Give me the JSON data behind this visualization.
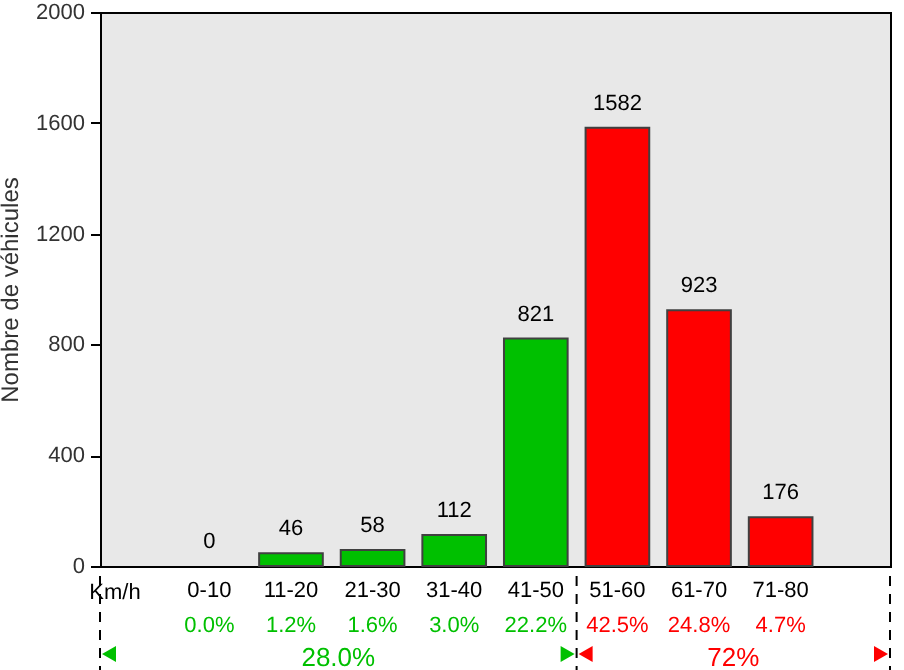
{
  "chart_data": {
    "type": "bar",
    "ylabel": "Nombre de véhicules",
    "xlabel": "Km/h",
    "categories": [
      "0-10",
      "11-20",
      "21-30",
      "31-40",
      "41-50",
      "51-60",
      "61-70",
      "71-80"
    ],
    "values": [
      0,
      46,
      58,
      112,
      821,
      1582,
      923,
      176
    ],
    "colors": [
      "#00c000",
      "#00c000",
      "#00c000",
      "#00c000",
      "#00c000",
      "#ff0000",
      "#ff0000",
      "#ff0000"
    ],
    "ylim": [
      0,
      2000
    ],
    "yticks": [
      0,
      400,
      800,
      1200,
      1600,
      2000
    ],
    "grid": false,
    "data_labels": true,
    "annotations": [
      "0.0%",
      "1.2%",
      "1.6%",
      "3.0%",
      "22.2%",
      "42.5%",
      "24.8%",
      "4.7%",
      "28.0%",
      "72%"
    ]
  }
}
